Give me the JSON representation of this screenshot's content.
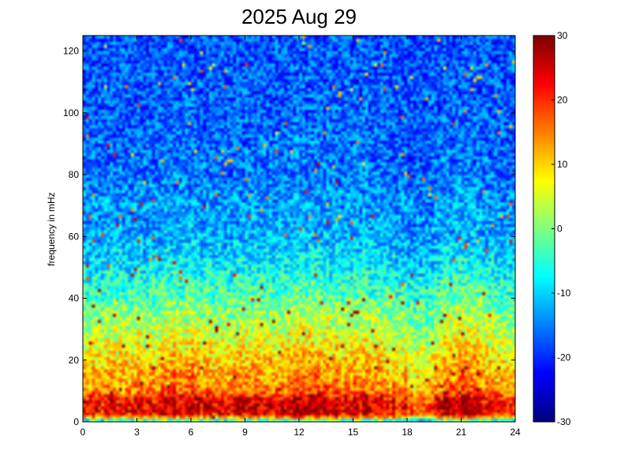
{
  "chart_data": {
    "type": "heatmap",
    "title": "2025 Aug 29",
    "xlabel": "",
    "ylabel": "frequency in mHz",
    "xlim": [
      0,
      24
    ],
    "ylim": [
      0,
      125
    ],
    "x_ticks": [
      0,
      3,
      6,
      9,
      12,
      15,
      18,
      21,
      24
    ],
    "y_ticks": [
      0,
      20,
      40,
      60,
      80,
      100,
      120
    ],
    "colorbar": {
      "range": [
        -30,
        30
      ],
      "ticks": [
        30,
        20,
        10,
        0,
        -10,
        -20,
        -30
      ],
      "colormap": "jet"
    },
    "grid": {
      "time_bins": 144,
      "freq_bins": 125,
      "time_step_hours": 0.1667,
      "freq_step_mhz": 1
    },
    "level_profile": {
      "freq_mhz": [
        0,
        1,
        2,
        4,
        6,
        8,
        10,
        13,
        16,
        20,
        25,
        30,
        35,
        40,
        45,
        50,
        60,
        70,
        80,
        100,
        125
      ],
      "mean_db": [
        -14,
        2,
        18,
        22,
        21,
        19,
        13,
        11,
        10,
        8,
        5,
        2,
        0,
        -4,
        -6,
        -9,
        -13,
        -14,
        -16,
        -17,
        -18
      ]
    },
    "activity_events": [
      {
        "hour": 2.0,
        "boost_db": 2
      },
      {
        "hour": 5.5,
        "boost_db": 6
      },
      {
        "hour": 9.5,
        "boost_db": 5
      },
      {
        "hour": 12.5,
        "boost_db": 7
      },
      {
        "hour": 15.5,
        "boost_db": 4
      },
      {
        "hour": 20.8,
        "boost_db": 8
      }
    ],
    "quiet_period_hours": [
      18.0,
      20.0
    ]
  }
}
